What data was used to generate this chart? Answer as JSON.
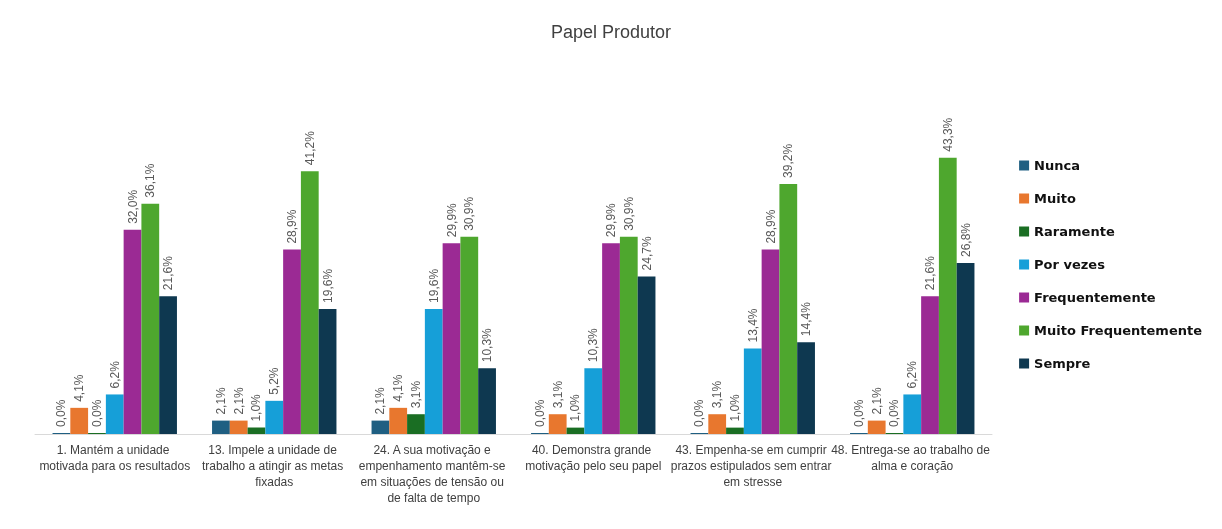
{
  "chart_data": {
    "type": "bar",
    "title": "Papel Produtor",
    "categories": [
      "1. Mantém a unidade motivada para os resultados",
      "13. Impele a unidade de trabalho a atingir as metas fixadas",
      "24. A sua motivação e empenhamento mantêm-se em situações de tensão ou de falta de tempo",
      "40. Demonstra grande motivação pelo seu papel",
      "43. Empenha-se em cumprir prazos estipulados sem entrar em stresse",
      "48. Entrega-se ao trabalho de alma e coração"
    ],
    "series": [
      {
        "name": "Nunca",
        "color": "#1f5f82",
        "values": [
          0.0,
          2.1,
          2.1,
          0.0,
          0.0,
          0.0
        ],
        "value_labels": [
          "0,0%",
          "2,1%",
          "2,1%",
          "0,0%",
          "0,0%",
          "0,0%"
        ]
      },
      {
        "name": "Muito",
        "color": "#e8772e",
        "values": [
          4.1,
          2.1,
          4.1,
          3.1,
          3.1,
          2.1
        ],
        "value_labels": [
          "4,1%",
          "2,1%",
          "4,1%",
          "3,1%",
          "3,1%",
          "2,1%"
        ]
      },
      {
        "name": "Raramente",
        "color": "#1a6e23",
        "values": [
          0.0,
          1.0,
          3.1,
          1.0,
          1.0,
          0.0
        ],
        "value_labels": [
          "0,0%",
          "1,0%",
          "3,1%",
          "1,0%",
          "1,0%",
          "0,0%"
        ]
      },
      {
        "name": "Por vezes",
        "color": "#169fd8",
        "values": [
          6.2,
          5.2,
          19.6,
          10.3,
          13.4,
          6.2
        ],
        "value_labels": [
          "6,2%",
          "5,2%",
          "19,6%",
          "10,3%",
          "13,4%",
          "6,2%"
        ]
      },
      {
        "name": "Frequentemente",
        "color": "#9b2a94",
        "values": [
          32.0,
          28.9,
          29.9,
          29.9,
          28.9,
          21.6
        ],
        "value_labels": [
          "32,0%",
          "28,9%",
          "29,9%",
          "29,9%",
          "28,9%",
          "21,6%"
        ]
      },
      {
        "name": "Muito Frequentemente",
        "color": "#4ea72e",
        "values": [
          36.1,
          41.2,
          30.9,
          30.9,
          39.2,
          43.3
        ],
        "value_labels": [
          "36,1%",
          "41,2%",
          "30,9%",
          "30,9%",
          "39,2%",
          "43,3%"
        ]
      },
      {
        "name": "Sempre",
        "color": "#0e3850",
        "values": [
          21.6,
          19.6,
          10.3,
          24.7,
          14.4,
          26.8
        ],
        "value_labels": [
          "21,6%",
          "19,6%",
          "10,3%",
          "24,7%",
          "14,4%",
          "26,8%"
        ]
      }
    ],
    "legend": "right",
    "tick_labels": "x"
  }
}
